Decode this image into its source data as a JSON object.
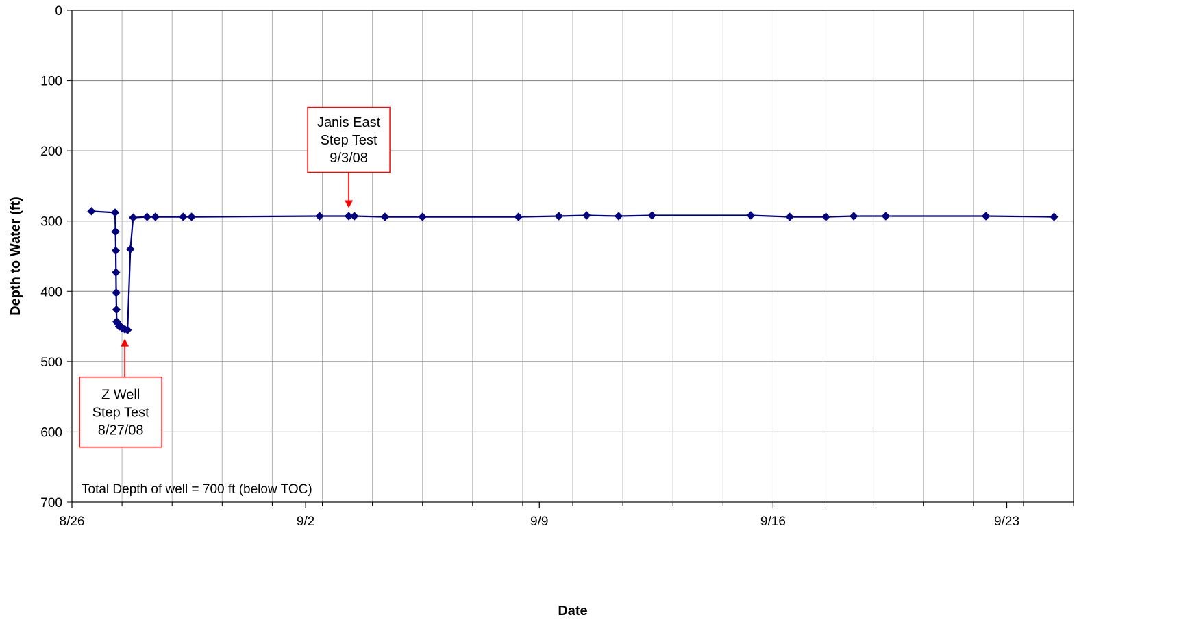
{
  "chart_data": {
    "type": "line",
    "title": "",
    "xlabel": "Date",
    "ylabel": "Depth to Water (ft)",
    "x_axis": {
      "min": "8/26",
      "max": "9/25",
      "major_ticks": [
        {
          "date": "8/26",
          "label": "8/26"
        },
        {
          "date": "9/2",
          "label": "9/2"
        },
        {
          "date": "9/9",
          "label": "9/9"
        },
        {
          "date": "9/16",
          "label": "9/16"
        },
        {
          "date": "9/23",
          "label": "9/23"
        }
      ]
    },
    "y_axis": {
      "ylim": [
        0,
        700
      ],
      "inverted": true,
      "ticks": [
        0,
        100,
        200,
        300,
        400,
        500,
        600,
        700
      ]
    },
    "grid": true,
    "legend": "none",
    "colors": {
      "series": "#000080",
      "annotation": "#ff0000"
    },
    "series": [
      {
        "points": [
          {
            "date": "8/26 14:00",
            "y": 286
          },
          {
            "date": "8/27 07:00",
            "y": 288
          },
          {
            "date": "8/27 07:20",
            "y": 315
          },
          {
            "date": "8/27 07:30",
            "y": 342
          },
          {
            "date": "8/27 07:40",
            "y": 373
          },
          {
            "date": "8/27 07:50",
            "y": 402
          },
          {
            "date": "8/27 08:00",
            "y": 426
          },
          {
            "date": "8/27 08:10",
            "y": 443
          },
          {
            "date": "8/27 09:00",
            "y": 446
          },
          {
            "date": "8/27 10:00",
            "y": 450
          },
          {
            "date": "8/27 12:00",
            "y": 452
          },
          {
            "date": "8/27 14:00",
            "y": 454
          },
          {
            "date": "8/27 16:00",
            "y": 455
          },
          {
            "date": "8/27 18:00",
            "y": 340
          },
          {
            "date": "8/27 20:00",
            "y": 295
          },
          {
            "date": "8/28 06:00",
            "y": 294
          },
          {
            "date": "8/28 12:00",
            "y": 294
          },
          {
            "date": "8/29 08:00",
            "y": 294
          },
          {
            "date": "8/29 14:00",
            "y": 294
          },
          {
            "date": "9/2 10:00",
            "y": 293
          },
          {
            "date": "9/3 07:00",
            "y": 293
          },
          {
            "date": "9/3 11:00",
            "y": 293
          },
          {
            "date": "9/4 09:00",
            "y": 294
          },
          {
            "date": "9/5 12:00",
            "y": 294
          },
          {
            "date": "9/8 09:00",
            "y": 294
          },
          {
            "date": "9/9 14:00",
            "y": 293
          },
          {
            "date": "9/10 10:00",
            "y": 292
          },
          {
            "date": "9/11 09:00",
            "y": 293
          },
          {
            "date": "9/12 09:00",
            "y": 292
          },
          {
            "date": "9/15 08:00",
            "y": 292
          },
          {
            "date": "9/16 12:00",
            "y": 294
          },
          {
            "date": "9/17 14:00",
            "y": 294
          },
          {
            "date": "9/18 10:00",
            "y": 293
          },
          {
            "date": "9/19 09:00",
            "y": 293
          },
          {
            "date": "9/22 09:00",
            "y": 293
          },
          {
            "date": "9/24 10:00",
            "y": 294
          }
        ]
      }
    ],
    "annotations": [
      {
        "lines": [
          "Janis East",
          "Step Test",
          "9/3/08"
        ],
        "points_to": {
          "date": "9/3 07:00",
          "y": 293
        },
        "box": "above"
      },
      {
        "lines": [
          "Z Well",
          "Step Test",
          "8/27/08"
        ],
        "points_to": {
          "date": "8/27 14:00",
          "y": 454
        },
        "box": "below"
      }
    ],
    "note": "Total Depth of well = 700 ft (below TOC)"
  }
}
